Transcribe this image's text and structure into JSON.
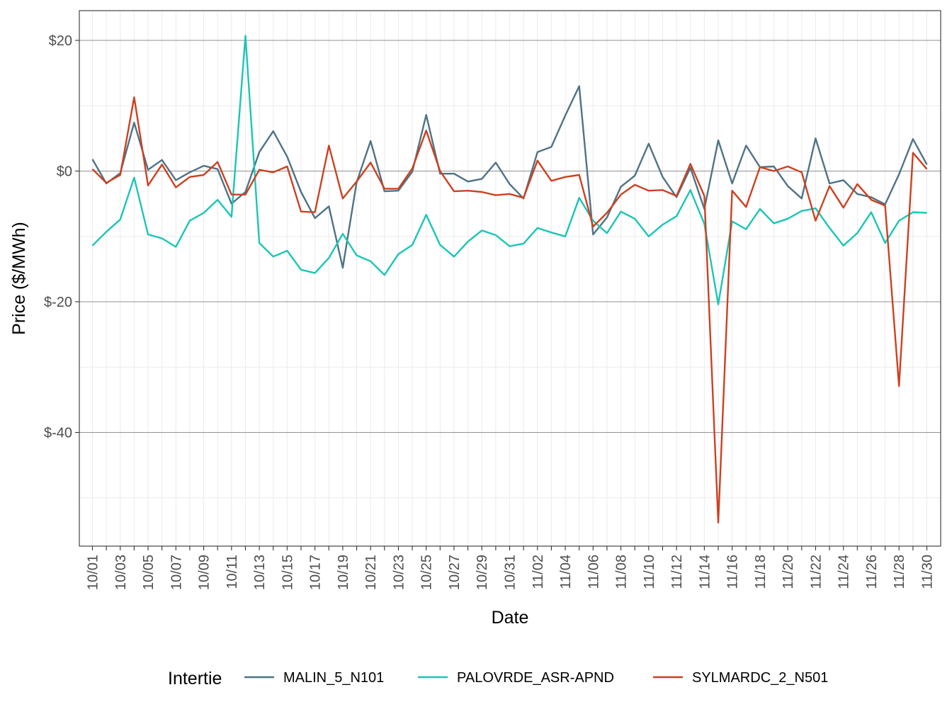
{
  "chart_data": {
    "type": "line",
    "xlabel": "Date",
    "ylabel": "Price ($/MWh)",
    "ylim": [
      -57,
      24
    ],
    "y_ticks": [
      20,
      0,
      -20,
      -40
    ],
    "y_tick_labels": [
      "$20",
      "$0",
      "$-20",
      "$-40"
    ],
    "grid": true,
    "legend": {
      "title": "Intertie",
      "position": "bottom"
    },
    "x": [
      "10/01",
      "10/02",
      "10/03",
      "10/04",
      "10/05",
      "10/06",
      "10/07",
      "10/08",
      "10/09",
      "10/10",
      "10/11",
      "10/12",
      "10/13",
      "10/14",
      "10/15",
      "10/16",
      "10/17",
      "10/18",
      "10/19",
      "10/20",
      "10/21",
      "10/22",
      "10/23",
      "10/24",
      "10/25",
      "10/26",
      "10/27",
      "10/28",
      "10/29",
      "10/30",
      "10/31",
      "11/01",
      "11/02",
      "11/03",
      "11/04",
      "11/05",
      "11/06",
      "11/07",
      "11/08",
      "11/09",
      "11/10",
      "11/11",
      "11/12",
      "11/13",
      "11/14",
      "11/15",
      "11/16",
      "11/17",
      "11/18",
      "11/19",
      "11/20",
      "11/21",
      "11/22",
      "11/23",
      "11/24",
      "11/25",
      "11/26",
      "11/27",
      "11/28",
      "11/29",
      "11/30"
    ],
    "x_tick_labels": [
      "10/01",
      "10/03",
      "10/05",
      "10/07",
      "10/09",
      "10/11",
      "10/13",
      "10/15",
      "10/17",
      "10/19",
      "10/21",
      "10/23",
      "10/25",
      "10/27",
      "10/29",
      "10/31",
      "11/02",
      "11/04",
      "11/06",
      "11/08",
      "11/10",
      "11/12",
      "11/14",
      "11/16",
      "11/18",
      "11/20",
      "11/22",
      "11/24",
      "11/26",
      "11/28",
      "11/30"
    ],
    "series": [
      {
        "name": "MALIN_5_N101",
        "color": "#4e7385",
        "values": [
          1.8,
          -1.9,
          -0.3,
          7.4,
          0.2,
          1.7,
          -1.4,
          -0.2,
          0.8,
          0.3,
          -5.0,
          -3.2,
          2.9,
          6.1,
          2.2,
          -3.2,
          -7.2,
          -5.4,
          -14.8,
          -1.7,
          4.6,
          -3.1,
          -3.0,
          -0.1,
          8.6,
          -0.4,
          -0.4,
          -1.6,
          -1.2,
          1.3,
          -2.0,
          -4.2,
          2.9,
          3.7,
          8.5,
          13.0,
          -9.7,
          -7.1,
          -2.4,
          -0.7,
          4.2,
          -0.9,
          -4.0,
          0.5,
          -5.8,
          4.7,
          -1.9,
          3.9,
          0.6,
          0.7,
          -2.3,
          -4.2,
          5.0,
          -1.9,
          -1.4,
          -3.5,
          -4.0,
          -5.1,
          -0.5,
          4.9,
          1.0
        ]
      },
      {
        "name": "PALOVRDE_ASR-APND",
        "color": "#1ac6b4",
        "values": [
          -11.4,
          -9.3,
          -7.4,
          -1.0,
          -9.7,
          -10.3,
          -11.6,
          -7.6,
          -6.4,
          -4.4,
          -7.0,
          20.7,
          -11.0,
          -13.1,
          -12.2,
          -15.1,
          -15.6,
          -13.3,
          -9.6,
          -12.9,
          -13.8,
          -15.9,
          -12.7,
          -11.3,
          -6.7,
          -11.3,
          -13.1,
          -10.8,
          -9.1,
          -9.8,
          -11.5,
          -11.1,
          -8.7,
          -9.4,
          -10.0,
          -4.1,
          -7.6,
          -9.5,
          -6.2,
          -7.3,
          -10.0,
          -8.2,
          -6.9,
          -2.9,
          -8.1,
          -20.4,
          -7.7,
          -8.9,
          -5.8,
          -8.0,
          -7.3,
          -6.1,
          -5.7,
          -8.7,
          -11.4,
          -9.5,
          -6.3,
          -11.0,
          -7.6,
          -6.3,
          -6.4
        ]
      },
      {
        "name": "SYLMARDC_2_N501",
        "color": "#cc4121",
        "values": [
          0.3,
          -1.8,
          -0.6,
          11.3,
          -2.2,
          1.0,
          -2.5,
          -0.9,
          -0.6,
          1.4,
          -3.6,
          -3.6,
          0.2,
          -0.2,
          0.7,
          -6.2,
          -6.3,
          3.9,
          -4.2,
          -1.6,
          1.3,
          -2.7,
          -2.7,
          0.4,
          6.2,
          0.0,
          -3.1,
          -3.0,
          -3.2,
          -3.7,
          -3.5,
          -4.1,
          1.6,
          -1.5,
          -0.9,
          -0.6,
          -8.5,
          -6.4,
          -3.6,
          -2.1,
          -3.0,
          -2.9,
          -3.8,
          1.1,
          -3.8,
          -53.8,
          -3.0,
          -5.5,
          0.6,
          0.0,
          0.7,
          -0.2,
          -7.6,
          -2.3,
          -5.6,
          -2.0,
          -4.4,
          -5.3,
          -32.9,
          2.8,
          0.3
        ]
      }
    ]
  }
}
